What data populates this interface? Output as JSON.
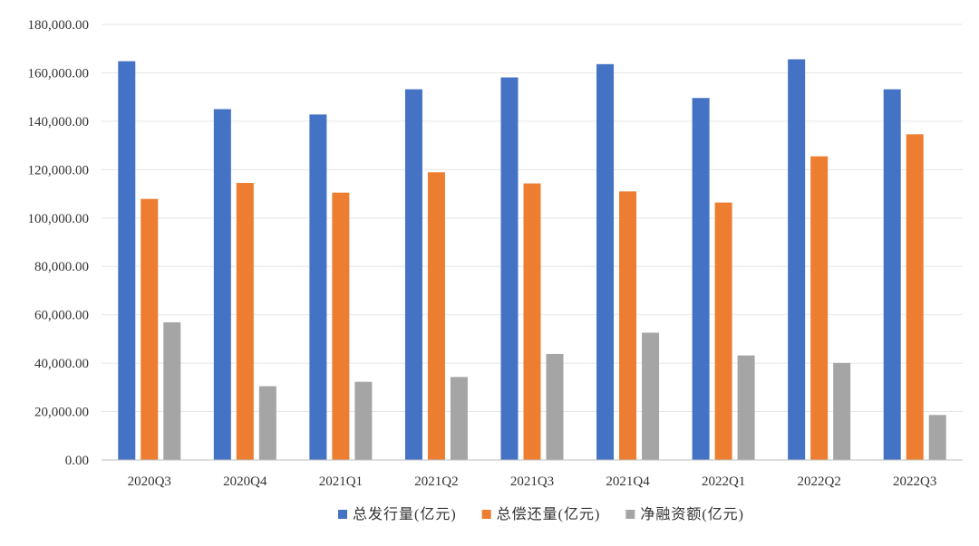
{
  "chart_data": {
    "type": "bar",
    "title": "",
    "xlabel": "",
    "ylabel": "",
    "categories": [
      "2020Q3",
      "2020Q4",
      "2021Q1",
      "2021Q2",
      "2021Q3",
      "2021Q4",
      "2022Q1",
      "2022Q2",
      "2022Q3"
    ],
    "series": [
      {
        "name": "总发行量(亿元)",
        "color": "#4472C4",
        "values": [
          164800,
          145000,
          142800,
          153200,
          158100,
          163600,
          149600,
          165600,
          153200
        ]
      },
      {
        "name": "总偿还量(亿元)",
        "color": "#ED7D31",
        "values": [
          107900,
          114500,
          110500,
          118900,
          114300,
          111000,
          106400,
          125500,
          134600
        ]
      },
      {
        "name": "净融资额(亿元)",
        "color": "#A5A5A5",
        "values": [
          56900,
          30500,
          32300,
          34300,
          43800,
          52600,
          43200,
          40100,
          18600
        ]
      }
    ],
    "ylim": [
      0,
      180000
    ],
    "y_ticks": [
      0,
      20000,
      40000,
      60000,
      80000,
      100000,
      120000,
      140000,
      160000,
      180000
    ],
    "y_tick_labels": [
      "0.00",
      "20,000.00",
      "40,000.00",
      "60,000.00",
      "80,000.00",
      "100,000.00",
      "120,000.00",
      "140,000.00",
      "160,000.00",
      "180,000.00"
    ],
    "grid": true,
    "legend_position": "bottom-center"
  }
}
